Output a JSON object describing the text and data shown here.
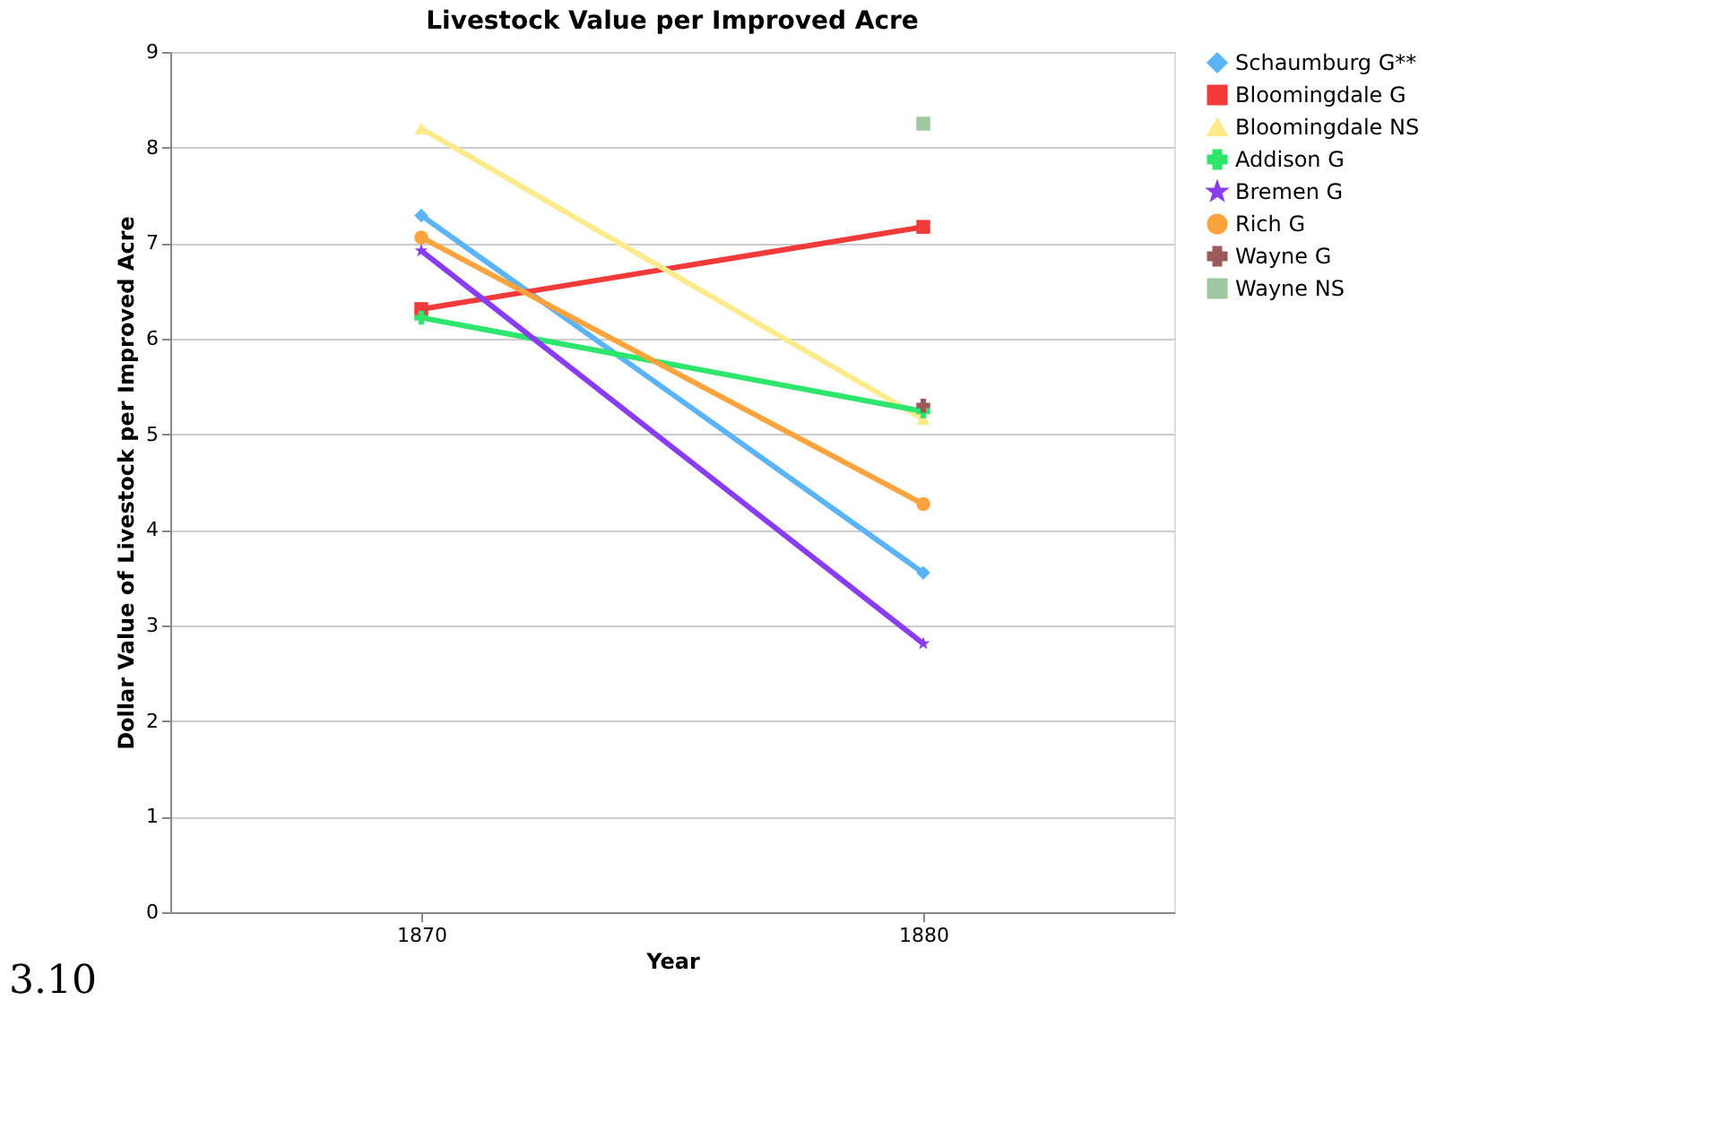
{
  "chart_data": {
    "type": "line",
    "title": "Livestock Value per Improved Acre",
    "xlabel": "Year",
    "ylabel": "Dollar Value of Livestock per Improved Acre",
    "categories": [
      "1870",
      "1880"
    ],
    "series": [
      {
        "name": "Schaumburg G**",
        "color": "#5ab4f5",
        "marker": "diamond",
        "values": [
          7.29,
          3.55
        ]
      },
      {
        "name": "Bloomingdale G",
        "color": "#f23a3a",
        "marker": "square",
        "values": [
          6.31,
          7.17
        ]
      },
      {
        "name": "Bloomingdale NS",
        "color": "#fbeb8c",
        "marker": "triangle",
        "values": [
          8.2,
          5.16
        ]
      },
      {
        "name": "Addison G",
        "color": "#2ee66b",
        "marker": "cross",
        "values": [
          6.22,
          5.24
        ]
      },
      {
        "name": "Bremen G",
        "color": "#8a3cf0",
        "marker": "star",
        "values": [
          6.92,
          2.81
        ]
      },
      {
        "name": "Rich G",
        "color": "#fba33c",
        "marker": "circle",
        "values": [
          7.06,
          4.27
        ]
      },
      {
        "name": "Wayne G",
        "color": "#9a5a5a",
        "marker": "cross",
        "values": [
          null,
          5.3
        ]
      },
      {
        "name": "Wayne NS",
        "color": "#a0c8a0",
        "marker": "square",
        "values": [
          null,
          8.25
        ]
      }
    ],
    "ylim": [
      0,
      9
    ],
    "yticks": [
      0,
      1,
      2,
      3,
      4,
      5,
      6,
      7,
      8,
      9
    ],
    "grid": "y",
    "legend": "right",
    "line_style": "solid",
    "annotations": [
      "3.10"
    ]
  }
}
